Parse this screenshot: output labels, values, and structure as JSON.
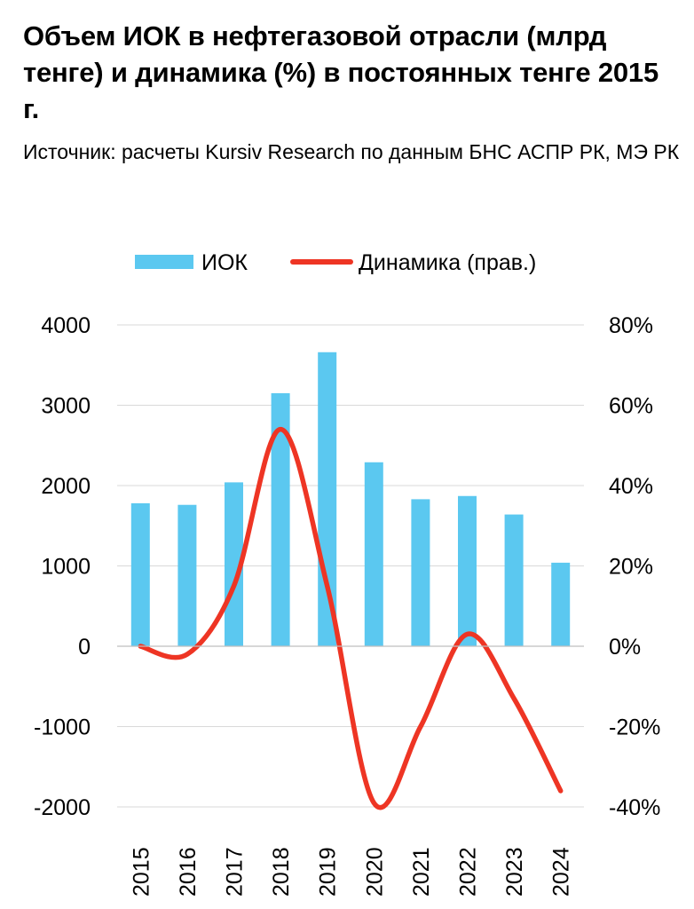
{
  "header": {
    "title": "Объем ИОК в нефтегазовой отрасли (млрд тенге) и динамика (%) в постоянных тенге 2015 г.",
    "subtitle": "Источник: расчеты Kursiv Research по данным БНС АСПР РК, МЭ РК"
  },
  "chart_data": {
    "type": "bar",
    "categories": [
      "2015",
      "2016",
      "2017",
      "2018",
      "2019",
      "2020",
      "2021",
      "2022",
      "2023",
      "2024"
    ],
    "series": [
      {
        "name": "ИОК",
        "type": "bar",
        "axis": "left",
        "color": "#5BC8F0",
        "values": [
          1780,
          1760,
          2040,
          3150,
          3660,
          2290,
          1830,
          1870,
          1640,
          1040
        ]
      },
      {
        "name": "Динамика (прав.)",
        "type": "line",
        "smooth": true,
        "axis": "right",
        "color": "#EE3524",
        "values": [
          0,
          -2,
          15,
          54,
          15,
          -39,
          -20,
          3,
          -13,
          -36
        ]
      }
    ],
    "y_left": {
      "ticks": [
        "4000",
        "3000",
        "2000",
        "1000",
        "0",
        "-1000",
        "-2000"
      ],
      "ylim": [
        -2000,
        4000
      ]
    },
    "y_right": {
      "ticks": [
        "80%",
        "60%",
        "40%",
        "20%",
        "0%",
        "-20%",
        "-40%"
      ],
      "ylim": [
        -40,
        80
      ]
    },
    "grid": true,
    "legend": "top-center"
  }
}
